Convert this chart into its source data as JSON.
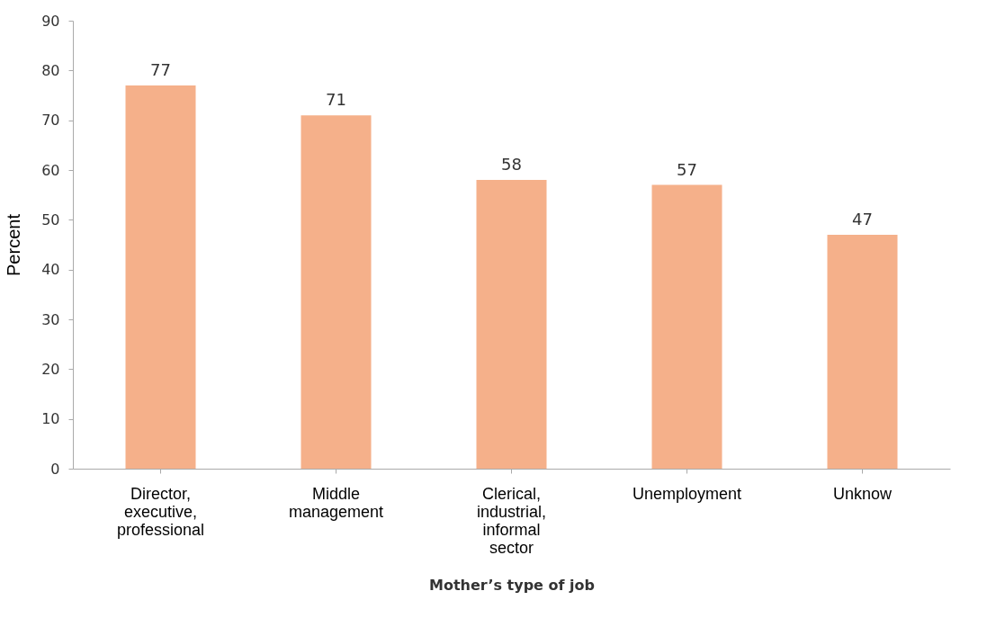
{
  "chart_data": {
    "type": "bar",
    "xlabel": "Mother’s type of job",
    "ylabel": "Percent",
    "categories": [
      "Director, executive, professional",
      "Middle management",
      "Clerical, industrial, informal sector",
      "Unemployment",
      "Unknow"
    ],
    "values": [
      77,
      71,
      58,
      57,
      47
    ],
    "color": "#f5b08a",
    "ylim": [
      0,
      90
    ],
    "yticks": [
      0,
      10,
      20,
      30,
      40,
      50,
      60,
      70,
      80,
      90
    ],
    "grid": false,
    "data_labels": true
  }
}
